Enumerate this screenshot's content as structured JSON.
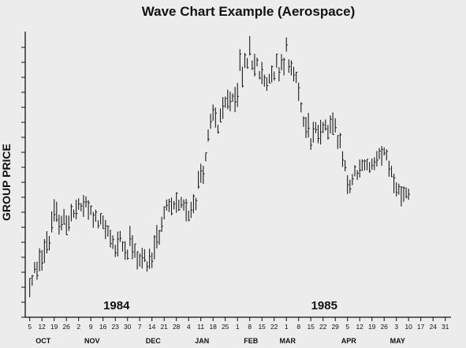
{
  "chart_data": {
    "type": "bar",
    "title": "Wave Chart Example (Aerospace)",
    "ylabel": "GROUP PRICE",
    "xlabel": "",
    "ylim": [
      0,
      18
    ],
    "grid": false,
    "y_tick_count": 19,
    "x_day_labels": [
      "5",
      "12",
      "19",
      "26",
      "2",
      "9",
      "16",
      "23",
      "30",
      "7",
      "14",
      "21",
      "28",
      "4",
      "11",
      "18",
      "25",
      "1",
      "8",
      "15",
      "22",
      "1",
      "8",
      "15",
      "22",
      "29",
      "5",
      "12",
      "19",
      "26",
      "3",
      "10",
      "17",
      "24",
      "31"
    ],
    "months": [
      {
        "label": "OCT",
        "tick_index": 1
      },
      {
        "label": "NOV",
        "tick_index": 5
      },
      {
        "label": "DEC",
        "tick_index": 10
      },
      {
        "label": "JAN",
        "tick_index": 14
      },
      {
        "label": "FEB",
        "tick_index": 18
      },
      {
        "label": "MAR",
        "tick_index": 21
      },
      {
        "label": "APR",
        "tick_index": 26
      },
      {
        "label": "MAY",
        "tick_index": 30
      }
    ],
    "years": [
      {
        "label": "1984",
        "tick_index": 7
      },
      {
        "label": "1985",
        "tick_index": 24
      }
    ],
    "range_anchors": [
      {
        "i": 0,
        "lo": 0.8,
        "hi": 2.5
      },
      {
        "i": 1,
        "lo": 2.7,
        "hi": 4.2
      },
      {
        "i": 2,
        "lo": 4.8,
        "hi": 7.2
      },
      {
        "i": 3,
        "lo": 5.2,
        "hi": 6.3
      },
      {
        "i": 4,
        "lo": 5.8,
        "hi": 7.5
      },
      {
        "i": 5,
        "lo": 5.8,
        "hi": 7.2
      },
      {
        "i": 6,
        "lo": 5.0,
        "hi": 6.0
      },
      {
        "i": 7,
        "lo": 3.6,
        "hi": 4.7
      },
      {
        "i": 8,
        "lo": 3.6,
        "hi": 5.8
      },
      {
        "i": 9,
        "lo": 2.7,
        "hi": 4.1
      },
      {
        "i": 10,
        "lo": 2.5,
        "hi": 4.8
      },
      {
        "i": 11,
        "lo": 5.6,
        "hi": 7.0
      },
      {
        "i": 12,
        "lo": 5.8,
        "hi": 7.6
      },
      {
        "i": 13,
        "lo": 5.7,
        "hi": 6.8
      },
      {
        "i": 14,
        "lo": 7.5,
        "hi": 10.2
      },
      {
        "i": 15,
        "lo": 11.0,
        "hi": 13.6
      },
      {
        "i": 16,
        "lo": 11.6,
        "hi": 13.6
      },
      {
        "i": 17,
        "lo": 13.0,
        "hi": 16.5
      },
      {
        "i": 18,
        "lo": 15.6,
        "hi": 17.9
      },
      {
        "i": 19,
        "lo": 14.0,
        "hi": 16.0
      },
      {
        "i": 20,
        "lo": 14.5,
        "hi": 16.0
      },
      {
        "i": 21,
        "lo": 15.2,
        "hi": 17.8
      },
      {
        "i": 22,
        "lo": 13.2,
        "hi": 14.5
      },
      {
        "i": 23,
        "lo": 10.2,
        "hi": 12.0
      },
      {
        "i": 24,
        "lo": 11.0,
        "hi": 12.0
      },
      {
        "i": 25,
        "lo": 11.5,
        "hi": 12.8
      },
      {
        "i": 26,
        "lo": 7.5,
        "hi": 8.8
      },
      {
        "i": 27,
        "lo": 8.5,
        "hi": 9.6
      },
      {
        "i": 28,
        "lo": 8.8,
        "hi": 9.7
      },
      {
        "i": 29,
        "lo": 9.7,
        "hi": 10.8
      },
      {
        "i": 30,
        "lo": 6.8,
        "hi": 8.2
      },
      {
        "i": 31,
        "lo": 7.0,
        "hi": 7.8
      }
    ]
  }
}
